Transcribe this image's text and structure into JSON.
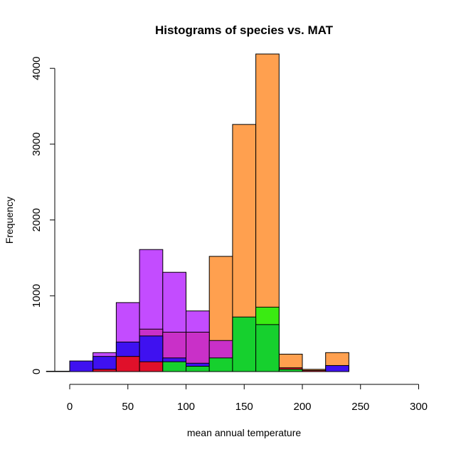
{
  "chart_data": {
    "type": "bar",
    "title": "Histograms of species vs. MAT",
    "xlabel": "mean annual temperature",
    "ylabel": "Frequency",
    "xlim": [
      -20,
      300
    ],
    "ylim": [
      0,
      4000
    ],
    "x_ticks": [
      0,
      50,
      100,
      150,
      200,
      250,
      300
    ],
    "y_ticks": [
      0,
      1000,
      2000,
      3000,
      4000
    ],
    "bin_width": 20,
    "series": [
      {
        "color": "#FFA04F",
        "bins": [
          {
            "x0": 120,
            "x1": 140,
            "value": 1520
          },
          {
            "x0": 140,
            "x1": 160,
            "value": 3260
          },
          {
            "x0": 160,
            "x1": 180,
            "value": 4200
          },
          {
            "x0": 180,
            "x1": 200,
            "value": 230
          },
          {
            "x0": 200,
            "x1": 220,
            "value": 30
          },
          {
            "x0": 220,
            "x1": 240,
            "value": 250
          }
        ]
      },
      {
        "color": "#C34CFF",
        "bins": [
          {
            "x0": 20,
            "x1": 40,
            "value": 250
          },
          {
            "x0": 40,
            "x1": 60,
            "value": 910
          },
          {
            "x0": 60,
            "x1": 80,
            "value": 1610
          },
          {
            "x0": 80,
            "x1": 100,
            "value": 1310
          },
          {
            "x0": 100,
            "x1": 120,
            "value": 800
          }
        ]
      },
      {
        "color": "#C930C8",
        "bins": [
          {
            "x0": 60,
            "x1": 80,
            "value": 560
          },
          {
            "x0": 80,
            "x1": 100,
            "value": 520
          },
          {
            "x0": 100,
            "x1": 120,
            "value": 520
          },
          {
            "x0": 120,
            "x1": 140,
            "value": 410
          }
        ]
      },
      {
        "color": "#3F11F0",
        "bins": [
          {
            "x0": 0,
            "x1": 20,
            "value": 140
          },
          {
            "x0": 20,
            "x1": 40,
            "value": 200
          },
          {
            "x0": 40,
            "x1": 60,
            "value": 390
          },
          {
            "x0": 60,
            "x1": 80,
            "value": 470
          },
          {
            "x0": 80,
            "x1": 100,
            "value": 180
          },
          {
            "x0": 100,
            "x1": 120,
            "value": 110
          },
          {
            "x0": 220,
            "x1": 240,
            "value": 80
          }
        ]
      },
      {
        "color": "#E0102A",
        "bins": [
          {
            "x0": -20,
            "x1": 0,
            "value": 5
          },
          {
            "x0": 20,
            "x1": 40,
            "value": 30
          },
          {
            "x0": 40,
            "x1": 60,
            "value": 200
          },
          {
            "x0": 60,
            "x1": 80,
            "value": 130
          },
          {
            "x0": 180,
            "x1": 200,
            "value": 50
          },
          {
            "x0": 200,
            "x1": 220,
            "value": 15
          }
        ]
      },
      {
        "color": "#3AEB12",
        "bins": [
          {
            "x0": 160,
            "x1": 180,
            "value": 850
          }
        ]
      },
      {
        "color": "#16D02E",
        "bins": [
          {
            "x0": 80,
            "x1": 100,
            "value": 130
          },
          {
            "x0": 100,
            "x1": 120,
            "value": 70
          },
          {
            "x0": 120,
            "x1": 140,
            "value": 180
          },
          {
            "x0": 140,
            "x1": 160,
            "value": 720
          },
          {
            "x0": 160,
            "x1": 180,
            "value": 620
          },
          {
            "x0": 180,
            "x1": 200,
            "value": 30
          }
        ]
      }
    ]
  }
}
